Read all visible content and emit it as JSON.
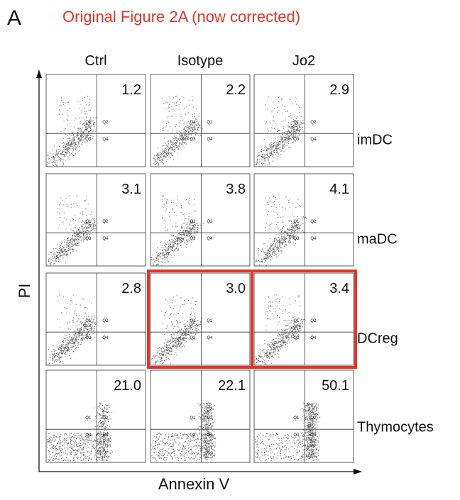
{
  "panel_label": "A",
  "title": "Original Figure 2A (now corrected)",
  "columns": [
    "Ctrl",
    "Isotype",
    "Jo2"
  ],
  "rows": [
    {
      "label": "imDC",
      "values": [
        "1.2",
        "2.2",
        "2.9"
      ],
      "highlighted": [
        false,
        false,
        false
      ]
    },
    {
      "label": "maDC",
      "values": [
        "3.1",
        "3.8",
        "4.1"
      ],
      "highlighted": [
        false,
        false,
        false
      ]
    },
    {
      "label": "DCreg",
      "values": [
        "2.8",
        "3.0",
        "3.4"
      ],
      "highlighted": [
        false,
        true,
        true
      ]
    },
    {
      "label": "Thymocytes",
      "values": [
        "21.0",
        "22.1",
        "50.1"
      ],
      "highlighted": [
        false,
        false,
        false
      ]
    }
  ],
  "quadrant_labels": [
    "Q1",
    "Q2",
    "Q3",
    "Q4"
  ],
  "highlight_color": "#e3342b",
  "y_axis_label": "PI",
  "x_axis_label": "Annexin V"
}
